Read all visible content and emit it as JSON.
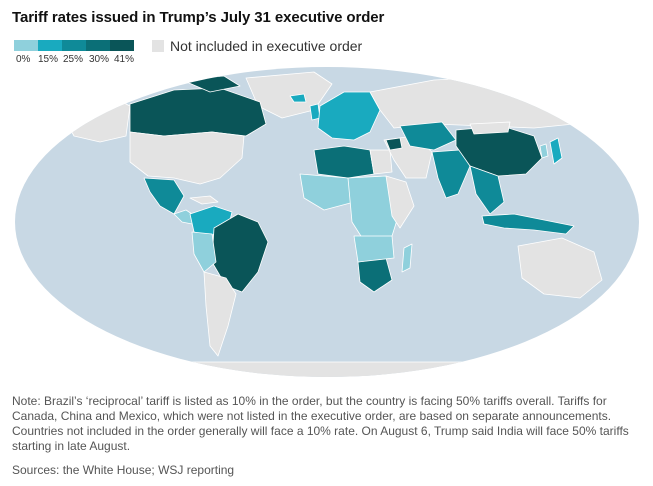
{
  "title": "Tariff rates issued in Trump’s July 31 executive order",
  "legend": {
    "swatch_colors": [
      "#8fd0dc",
      "#19aabf",
      "#0f8a98",
      "#0b6f77",
      "#0a5558"
    ],
    "labels": [
      "0%",
      "15%",
      "25%",
      "30%",
      "41%"
    ],
    "excluded_label": "Not included in executive order",
    "excluded_color": "#e3e3e3"
  },
  "map": {
    "ocean_color": "#c8d8e4",
    "regions": [
      {
        "name": "Canada",
        "tier": "41%"
      },
      {
        "name": "United States",
        "tier": "excluded"
      },
      {
        "name": "Mexico",
        "tier": "25%"
      },
      {
        "name": "Brazil",
        "tier": "41%"
      },
      {
        "name": "China",
        "tier": "41%"
      },
      {
        "name": "India",
        "tier": "25%"
      },
      {
        "name": "Russia",
        "tier": "excluded"
      },
      {
        "name": "Kazakhstan",
        "tier": "25%"
      },
      {
        "name": "South Africa",
        "tier": "30%"
      },
      {
        "name": "Indonesia",
        "tier": "25%"
      },
      {
        "name": "Australia",
        "tier": "excluded"
      },
      {
        "name": "Libya",
        "tier": "30%"
      },
      {
        "name": "Algeria",
        "tier": "30%"
      },
      {
        "name": "Syria",
        "tier": "41%"
      }
    ]
  },
  "note": "Note: Brazil’s ‘reciprocal’ tariff is listed as 10% in the order, but the country is facing 50% tariffs overall. Tariffs for Canada, China and Mexico, which were not listed in the executive order, are based on separate announcements. Countries not included in the order generally will face a 10% rate. On August 6, Trump said India will face 50% tariffs starting in late August.",
  "sources": "Sources: the White House; WSJ reporting"
}
